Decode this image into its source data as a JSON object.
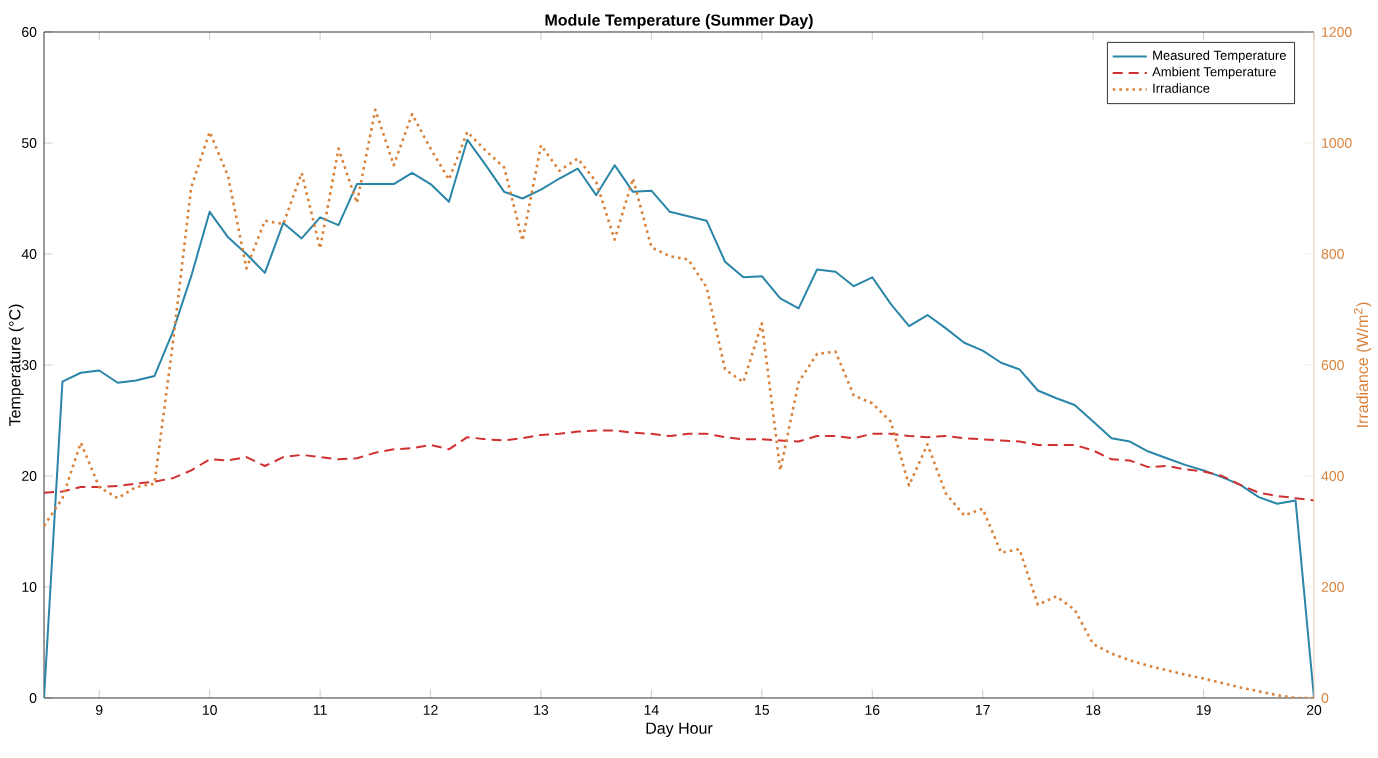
{
  "chart_data": {
    "type": "line",
    "title": "Module Temperature (Summer Day)",
    "xlabel": "Day Hour",
    "ylabel": "Temperature (°C)",
    "y2label": "Irradiance (W/m$^{2}$)",
    "x": [
      8.5,
      8.667,
      8.833,
      9,
      9.167,
      9.333,
      9.5,
      9.667,
      9.833,
      10,
      10.167,
      10.333,
      10.5,
      10.667,
      10.833,
      11,
      11.167,
      11.333,
      11.5,
      11.667,
      11.833,
      12,
      12.167,
      12.333,
      12.5,
      12.667,
      12.833,
      13,
      13.167,
      13.333,
      13.5,
      13.667,
      13.833,
      14,
      14.167,
      14.333,
      14.5,
      14.667,
      14.833,
      15,
      15.167,
      15.333,
      15.5,
      15.667,
      15.833,
      16,
      16.167,
      16.333,
      16.5,
      16.667,
      16.833,
      17,
      17.167,
      17.333,
      17.5,
      17.667,
      17.833,
      18,
      18.167,
      18.333,
      18.5,
      18.667,
      18.833,
      19,
      19.167,
      19.333,
      19.5,
      19.667,
      19.833,
      20
    ],
    "series": [
      {
        "name": "Measured Temperature",
        "color": "#2a86a8",
        "line_style": "solid",
        "values": [
          0,
          28.5,
          29.3,
          29.5,
          28.4,
          28.6,
          29,
          33,
          38,
          43.8,
          41.5,
          40,
          38.3,
          42.8,
          41.4,
          43.3,
          42.6,
          46.3,
          46.3,
          46.3,
          47.3,
          46.3,
          44.7,
          50.3,
          48,
          45.6,
          45,
          45.8,
          46.8,
          47.7,
          45.3,
          48,
          45.6,
          45.7,
          43.8,
          43.4,
          43,
          39.3,
          37.9,
          38,
          36,
          35.1,
          38.6,
          38.4,
          37.1,
          37.9,
          35.5,
          33.5,
          34.5,
          33.3,
          32,
          31.3,
          30.2,
          29.6,
          27.7,
          27,
          26.4,
          24.9,
          23.4,
          23.1,
          22.2,
          21.6,
          21,
          20.5,
          19.9,
          19.2,
          18.1,
          17.5,
          17.8,
          0
        ]
      },
      {
        "name": "Ambient Temperature",
        "color": "#d03030",
        "line_style": "dashed",
        "values": [
          18.5,
          18.6,
          19,
          19,
          19.1,
          19.3,
          19.5,
          19.8,
          20.5,
          21.5,
          21.4,
          21.7,
          20.9,
          21.7,
          21.9,
          21.7,
          21.5,
          21.6,
          22.1,
          22.4,
          22.5,
          22.8,
          22.4,
          23.5,
          23.3,
          23.2,
          23.4,
          23.7,
          23.8,
          24,
          24.1,
          24.1,
          23.9,
          23.8,
          23.6,
          23.8,
          23.8,
          23.5,
          23.3,
          23.3,
          23.2,
          23.1,
          23.6,
          23.6,
          23.4,
          23.8,
          23.8,
          23.6,
          23.5,
          23.6,
          23.4,
          23.3,
          23.2,
          23.1,
          22.8,
          22.8,
          22.8,
          22.3,
          21.5,
          21.4,
          20.8,
          20.9,
          20.6,
          20.4,
          20,
          19.2,
          18.5,
          18.2,
          18,
          17.8
        ]
      },
      {
        "name": "Irradiance",
        "color": "#d9823b",
        "line_style": "dotted",
        "axis": "y2",
        "values": [
          310,
          360,
          460,
          380,
          360,
          380,
          386,
          640,
          920,
          1020,
          940,
          774,
          860,
          854,
          946,
          810,
          990,
          892,
          1060,
          960,
          1052,
          990,
          934,
          1020,
          986,
          956,
          824,
          996,
          950,
          972,
          930,
          826,
          936,
          812,
          796,
          790,
          740,
          592,
          569,
          675,
          410,
          569,
          620,
          624,
          545,
          531,
          498,
          383,
          457,
          368,
          329,
          341,
          262,
          268,
          168,
          183,
          159,
          97,
          80,
          68,
          58,
          50,
          42,
          35,
          27,
          19,
          12,
          5,
          0,
          0
        ]
      }
    ],
    "xlim": [
      8.5,
      20
    ],
    "xticks": [
      9,
      10,
      11,
      12,
      13,
      14,
      15,
      16,
      17,
      18,
      19,
      20
    ],
    "ylim": [
      0,
      60
    ],
    "yticks": [
      0,
      10,
      20,
      30,
      40,
      50,
      60
    ],
    "y2lim": [
      0,
      1200
    ],
    "y2ticks": [
      0,
      200,
      400,
      600,
      800,
      1000,
      1200
    ],
    "grid": false,
    "legend": "top right",
    "marker": "none"
  }
}
